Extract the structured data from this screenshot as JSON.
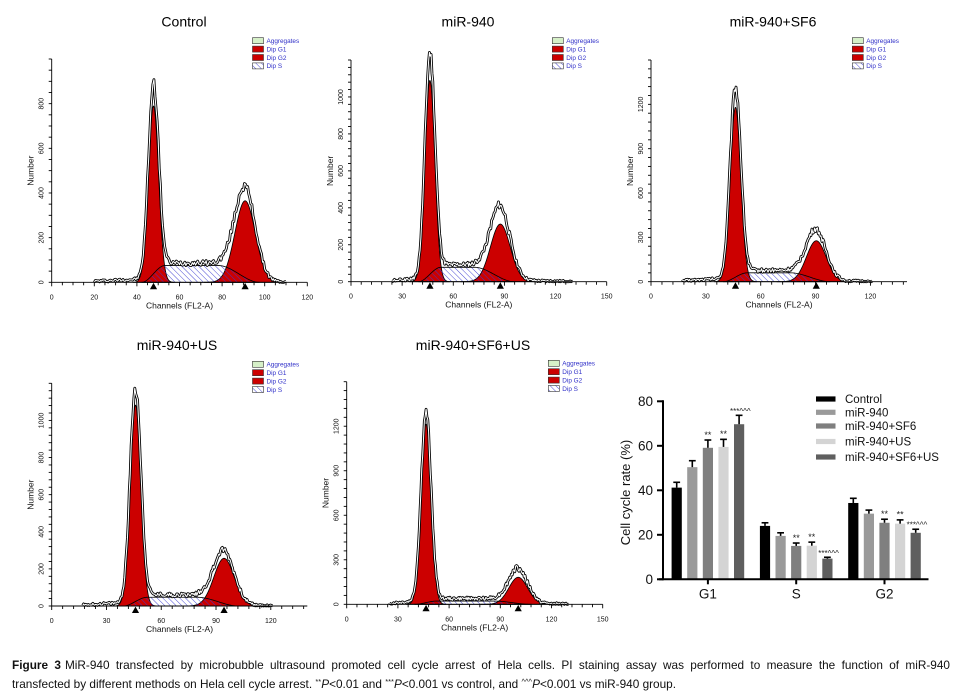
{
  "caption": {
    "label": "Figure 3",
    "line1": "MiR-940 transfected by microbubble ultrasound promoted cell cycle arrest of Hela cells. PI staining assay was performed to measure the function of miR-940",
    "line2": {
      "t1": "transfected by different methods on Hela cell cycle arrest. ",
      "sig1": "**",
      "p1": "P",
      "t2": "<0.01 and ",
      "sig2": "***",
      "p2": "P",
      "t3": "<0.001 vs control, and ",
      "sig3": "^^^",
      "p3": "P",
      "t4": "<0.001 vs miR-940 group."
    }
  },
  "chart_data": [
    {
      "type": "area",
      "title": "Control",
      "xlabel": "Channels (FL2-A)",
      "ylabel": "Number",
      "xlim": [
        0,
        120
      ],
      "ylim": [
        0,
        1000
      ],
      "xticks": [
        0,
        20,
        40,
        60,
        80,
        100,
        120
      ],
      "yticks": [
        0,
        200,
        400,
        600,
        800
      ],
      "x_minor_step": 5,
      "y_minor_step": 50,
      "legend_position": "top-right",
      "legend": [
        {
          "label": "Aggregates",
          "color": "#d6f0c8"
        },
        {
          "label": "Dip G1",
          "color": "#cc0000"
        },
        {
          "label": "Dip G2",
          "color": "#cc0000"
        },
        {
          "label": "Dip S",
          "color": "#3a3ad0",
          "pattern": "diagonal-hatch"
        }
      ],
      "components": {
        "dip_g1": {
          "mean_channel": 47.8,
          "peak_count": 790,
          "sd_channels": 2.4
        },
        "dip_g2": {
          "mean_channel": 90.8,
          "peak_count": 365,
          "sd_channels": 4.8
        },
        "dip_s": {
          "plateau_count": 75
        }
      },
      "raw_histogram": {
        "g1_peak_count": 835,
        "g2_peak_count": 420,
        "start_channel": 20,
        "end_channel": 110
      },
      "peak_markers_channel": [
        47.8,
        90.8
      ]
    },
    {
      "type": "area",
      "title": "miR-940",
      "xlabel": "Channels (FL2-A)",
      "ylabel": "Number",
      "xlim": [
        0,
        150
      ],
      "ylim": [
        0,
        1200
      ],
      "xticks": [
        0,
        30,
        60,
        90,
        120,
        150
      ],
      "yticks": [
        0,
        200,
        400,
        600,
        800,
        1000
      ],
      "x_minor_step": 6,
      "y_minor_step": 40,
      "legend_position": "top-right",
      "legend": [
        {
          "label": "Aggregates",
          "color": "#d6f0c8"
        },
        {
          "label": "Dip G1",
          "color": "#cc0000"
        },
        {
          "label": "Dip G2",
          "color": "#cc0000"
        },
        {
          "label": "Dip S",
          "color": "#3a3ad0",
          "pattern": "diagonal-hatch"
        }
      ],
      "components": {
        "dip_g1": {
          "mean_channel": 46.3,
          "peak_count": 1090,
          "sd_channels": 2.9
        },
        "dip_g2": {
          "mean_channel": 87.6,
          "peak_count": 312,
          "sd_channels": 5.8
        },
        "dip_s": {
          "plateau_count": 78
        }
      },
      "raw_histogram": {
        "g1_peak_count": 1180,
        "g2_peak_count": 400,
        "start_channel": 24,
        "end_channel": 130
      },
      "peak_markers_channel": [
        46.3,
        87.6
      ]
    },
    {
      "type": "area",
      "title": "miR-940+SF6",
      "xlabel": "Channels (FL2-A)",
      "ylabel": "Number",
      "xlim": [
        0,
        140
      ],
      "ylim": [
        0,
        1500
      ],
      "xticks": [
        0,
        30,
        60,
        90,
        120
      ],
      "yticks": [
        0,
        300,
        600,
        900,
        1200
      ],
      "x_minor_step": 6,
      "y_minor_step": 60,
      "legend_position": "top-right",
      "legend": [
        {
          "label": "Aggregates",
          "color": "#d6f0c8"
        },
        {
          "label": "Dip G1",
          "color": "#cc0000"
        },
        {
          "label": "Dip G2",
          "color": "#cc0000"
        },
        {
          "label": "Dip S",
          "color": "#3a3ad0",
          "pattern": "diagonal-hatch"
        }
      ],
      "components": {
        "dip_g1": {
          "mean_channel": 46.2,
          "peak_count": 1180,
          "sd_channels": 2.9
        },
        "dip_g2": {
          "mean_channel": 90.4,
          "peak_count": 277,
          "sd_channels": 5.4
        },
        "dip_s": {
          "plateau_count": 60
        }
      },
      "raw_histogram": {
        "g1_peak_count": 1265,
        "g2_peak_count": 340,
        "start_channel": 17,
        "end_channel": 121
      },
      "peak_markers_channel": [
        46.2,
        90.4
      ]
    },
    {
      "type": "area",
      "title": "miR-940+US",
      "xlabel": "Channels (FL2-A)",
      "ylabel": "Number",
      "xlim": [
        0,
        140
      ],
      "ylim": [
        0,
        1200
      ],
      "xticks": [
        0,
        30,
        60,
        90,
        120
      ],
      "yticks": [
        0,
        200,
        400,
        600,
        800,
        1000
      ],
      "x_minor_step": 6,
      "y_minor_step": 40,
      "legend_position": "top-right",
      "legend": [
        {
          "label": "Aggregates",
          "color": "#d6f0c8"
        },
        {
          "label": "Dip G1",
          "color": "#cc0000"
        },
        {
          "label": "Dip G2",
          "color": "#cc0000"
        },
        {
          "label": "Dip S",
          "color": "#3a3ad0",
          "pattern": "diagonal-hatch"
        }
      ],
      "components": {
        "dip_g1": {
          "mean_channel": 45.9,
          "peak_count": 1083,
          "sd_channels": 2.9
        },
        "dip_g2": {
          "mean_channel": 94.4,
          "peak_count": 257,
          "sd_channels": 5.6
        },
        "dip_s": {
          "plateau_count": 47
        }
      },
      "raw_histogram": {
        "g1_peak_count": 1135,
        "g2_peak_count": 290,
        "start_channel": 17,
        "end_channel": 121
      },
      "peak_markers_channel": [
        45.9,
        94.4
      ]
    },
    {
      "type": "area",
      "title": "miR-940+SF6+US",
      "xlabel": "Channels (FL2-A)",
      "ylabel": "Number",
      "xlim": [
        0,
        150
      ],
      "ylim": [
        0,
        1500
      ],
      "xticks": [
        0,
        30,
        60,
        90,
        120,
        150
      ],
      "yticks": [
        0,
        300,
        600,
        900,
        1200
      ],
      "x_minor_step": 6,
      "y_minor_step": 60,
      "legend_position": "top-right",
      "legend": [
        {
          "label": "Aggregates",
          "color": "#d6f0c8"
        },
        {
          "label": "Dip G1",
          "color": "#cc0000"
        },
        {
          "label": "Dip G2",
          "color": "#cc0000"
        },
        {
          "label": "Dip S",
          "color": "#3a3ad0",
          "pattern": "diagonal-hatch"
        }
      ],
      "components": {
        "dip_g1": {
          "mean_channel": 46.5,
          "peak_count": 1215,
          "sd_channels": 2.9
        },
        "dip_g2": {
          "mean_channel": 100.5,
          "peak_count": 182,
          "sd_channels": 5.5
        },
        "dip_s": {
          "plateau_count": 22
        }
      },
      "raw_histogram": {
        "g1_peak_count": 1260,
        "g2_peak_count": 230,
        "start_channel": 25,
        "end_channel": 130
      },
      "peak_markers_channel": [
        46.5,
        100.5
      ]
    },
    {
      "type": "bar",
      "title": "",
      "xlabel": "",
      "ylabel": "Cell cycle rate (%)",
      "ylim": [
        0,
        80
      ],
      "yticks": [
        0,
        20,
        40,
        60,
        80
      ],
      "categories": [
        "G1",
        "S",
        "G2"
      ],
      "legend_position": "top-right",
      "series": [
        {
          "name": "Control",
          "color": "#000000",
          "values": [
            41.2,
            24.0,
            34.3
          ],
          "errors": [
            2.4,
            1.4,
            2.1
          ],
          "annotations": [
            "",
            "",
            ""
          ]
        },
        {
          "name": "miR-940",
          "color": "#9a9a9a",
          "values": [
            50.4,
            19.5,
            29.5
          ],
          "errors": [
            2.9,
            1.4,
            1.6
          ],
          "annotations": [
            "",
            "",
            ""
          ]
        },
        {
          "name": "miR-940+SF6",
          "color": "#7f7f7f",
          "values": [
            59.1,
            15.0,
            25.4
          ],
          "errors": [
            3.5,
            1.3,
            1.6
          ],
          "annotations": [
            "**",
            "**",
            "**"
          ]
        },
        {
          "name": "miR-940+US",
          "color": "#d4d4d4",
          "values": [
            59.5,
            15.1,
            25.0
          ],
          "errors": [
            3.4,
            1.6,
            1.7
          ],
          "annotations": [
            "**",
            "**",
            "**"
          ]
        },
        {
          "name": "miR-940+SF6+US",
          "color": "#5f5f5f",
          "values": [
            69.7,
            9.3,
            20.9
          ],
          "errors": [
            4.0,
            0.6,
            1.6
          ],
          "annotations": [
            "***^^^",
            "***^^^",
            "***^^^"
          ]
        }
      ]
    }
  ]
}
